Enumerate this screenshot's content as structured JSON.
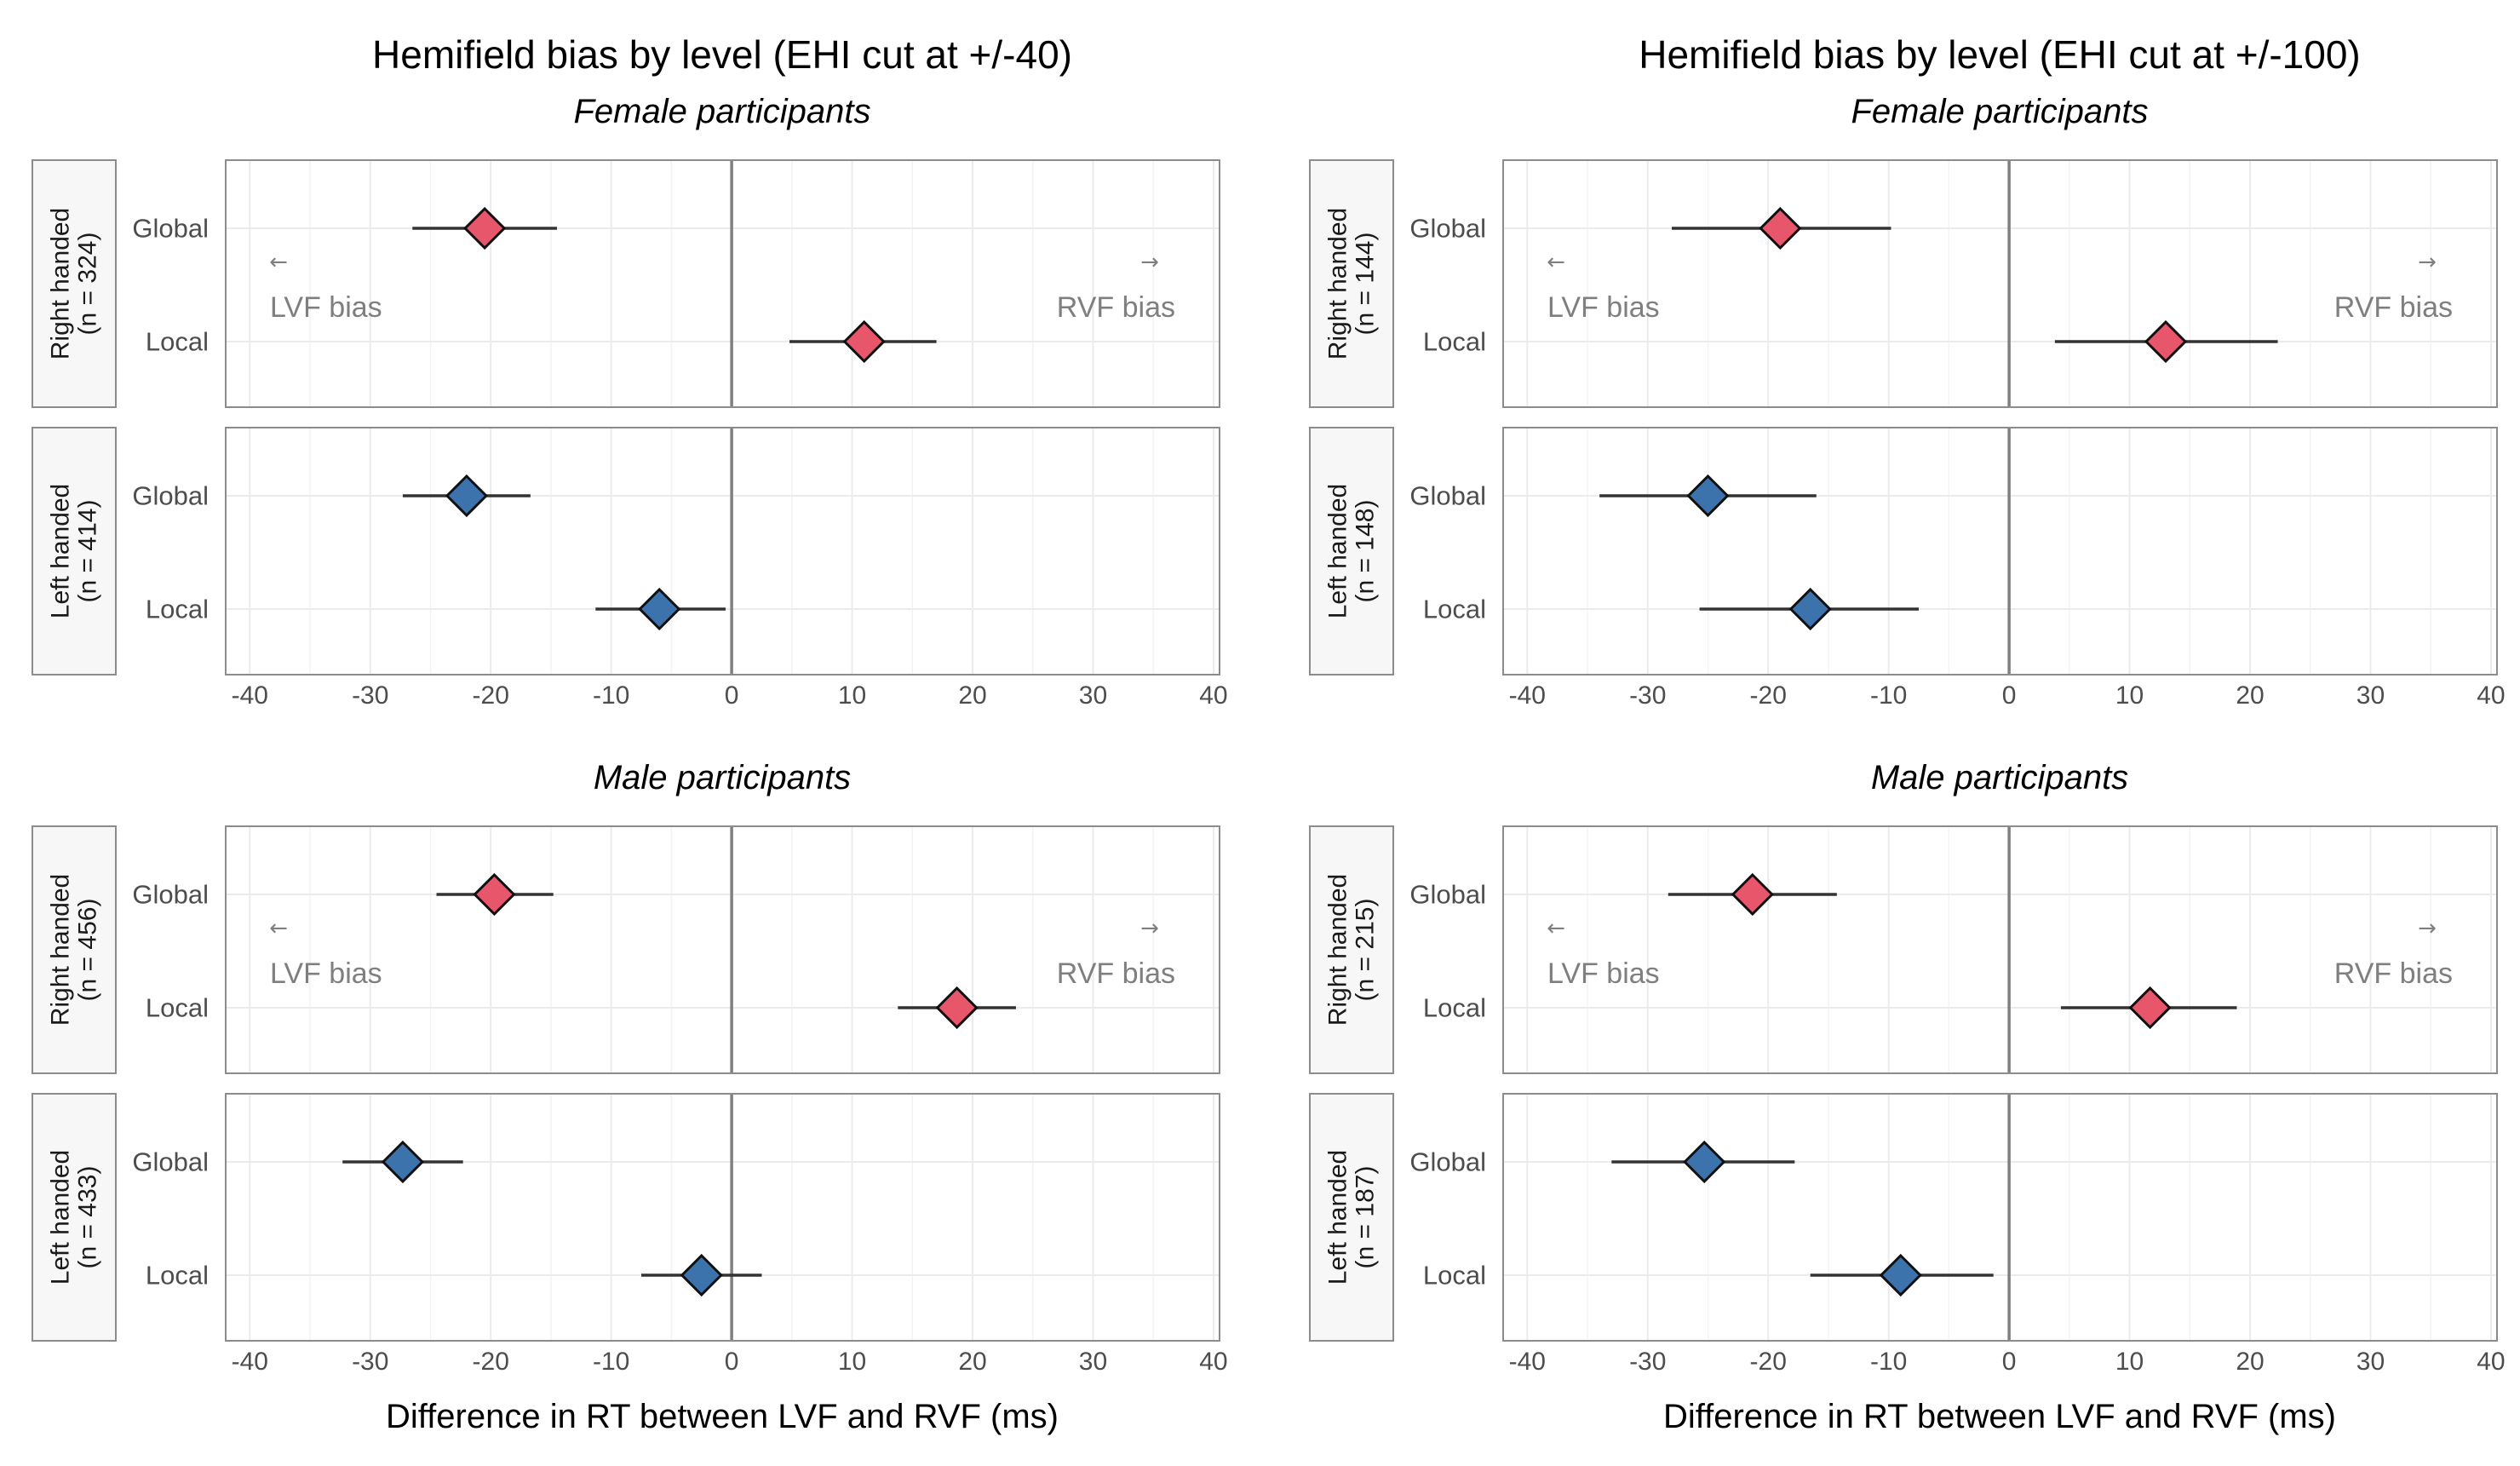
{
  "colors": {
    "female_right": "#e8566b",
    "male_left": "#3d73ad",
    "grid": "#ebebeb",
    "zero_line": "#808080",
    "panel_border": "#8c8c8c",
    "strip_fill": "#f7f7f7"
  },
  "chart_data": [
    {
      "type": "scatter",
      "title": "Hemifield bias by level (EHI cut at +/-40)",
      "xlabel": "Difference in RT between LVF and RVF (ms)",
      "xlim": [
        -42,
        40.5
      ],
      "xticks": [
        -40,
        -30,
        -20,
        -10,
        0,
        10,
        20,
        30,
        40
      ],
      "levels": [
        "Global",
        "Local"
      ],
      "annotations": {
        "left": "LVF bias",
        "right": "RVF bias",
        "left_arrow": "←",
        "right_arrow": "→"
      },
      "groups": [
        {
          "subtitle": "Female participants",
          "panels": [
            {
              "strip": [
                "Right handed",
                "(n = 324)"
              ],
              "color": "female_right",
              "points": [
                {
                  "level": "Global",
                  "est": -20.5,
                  "lo": -26.5,
                  "hi": -14.5
                },
                {
                  "level": "Local",
                  "est": 11.0,
                  "lo": 4.8,
                  "hi": 17.0
                }
              ]
            },
            {
              "strip": [
                "Left handed",
                "(n = 414)"
              ],
              "color": "male_left",
              "points": [
                {
                  "level": "Global",
                  "est": -22.0,
                  "lo": -27.3,
                  "hi": -16.7
                },
                {
                  "level": "Local",
                  "est": -6.0,
                  "lo": -11.3,
                  "hi": -0.5
                }
              ]
            }
          ]
        },
        {
          "subtitle": "Male participants",
          "panels": [
            {
              "strip": [
                "Right handed",
                "(n = 456)"
              ],
              "color": "female_right",
              "points": [
                {
                  "level": "Global",
                  "est": -19.7,
                  "lo": -24.5,
                  "hi": -14.8
                },
                {
                  "level": "Local",
                  "est": 18.7,
                  "lo": 13.8,
                  "hi": 23.6
                }
              ]
            },
            {
              "strip": [
                "Left handed",
                "(n = 433)"
              ],
              "color": "male_left",
              "points": [
                {
                  "level": "Global",
                  "est": -27.3,
                  "lo": -32.3,
                  "hi": -22.3
                },
                {
                  "level": "Local",
                  "est": -2.5,
                  "lo": -7.5,
                  "hi": 2.5
                }
              ]
            }
          ]
        }
      ]
    },
    {
      "type": "scatter",
      "title": "Hemifield bias by level (EHI cut at +/-100)",
      "xlabel": "Difference in RT between LVF and RVF (ms)",
      "xlim": [
        -42,
        40.5
      ],
      "xticks": [
        -40,
        -30,
        -20,
        -10,
        0,
        10,
        20,
        30,
        40
      ],
      "levels": [
        "Global",
        "Local"
      ],
      "annotations": {
        "left": "LVF bias",
        "right": "RVF bias",
        "left_arrow": "←",
        "right_arrow": "→"
      },
      "groups": [
        {
          "subtitle": "Female participants",
          "panels": [
            {
              "strip": [
                "Right handed",
                "(n = 144)"
              ],
              "color": "female_right",
              "points": [
                {
                  "level": "Global",
                  "est": -19.0,
                  "lo": -28.0,
                  "hi": -9.8
                },
                {
                  "level": "Local",
                  "est": 13.0,
                  "lo": 3.8,
                  "hi": 22.3
                }
              ]
            },
            {
              "strip": [
                "Left handed",
                "(n = 148)"
              ],
              "color": "male_left",
              "points": [
                {
                  "level": "Global",
                  "est": -25.0,
                  "lo": -34.0,
                  "hi": -16.0
                },
                {
                  "level": "Local",
                  "est": -16.5,
                  "lo": -25.7,
                  "hi": -7.5
                }
              ]
            }
          ]
        },
        {
          "subtitle": "Male participants",
          "panels": [
            {
              "strip": [
                "Right handed",
                "(n = 215)"
              ],
              "color": "female_right",
              "points": [
                {
                  "level": "Global",
                  "est": -21.3,
                  "lo": -28.3,
                  "hi": -14.3
                },
                {
                  "level": "Local",
                  "est": 11.7,
                  "lo": 4.3,
                  "hi": 18.9
                }
              ]
            },
            {
              "strip": [
                "Left handed",
                "(n = 187)"
              ],
              "color": "male_left",
              "points": [
                {
                  "level": "Global",
                  "est": -25.3,
                  "lo": -33.0,
                  "hi": -17.8
                },
                {
                  "level": "Local",
                  "est": -9.0,
                  "lo": -16.5,
                  "hi": -1.3
                }
              ]
            }
          ]
        }
      ]
    }
  ]
}
